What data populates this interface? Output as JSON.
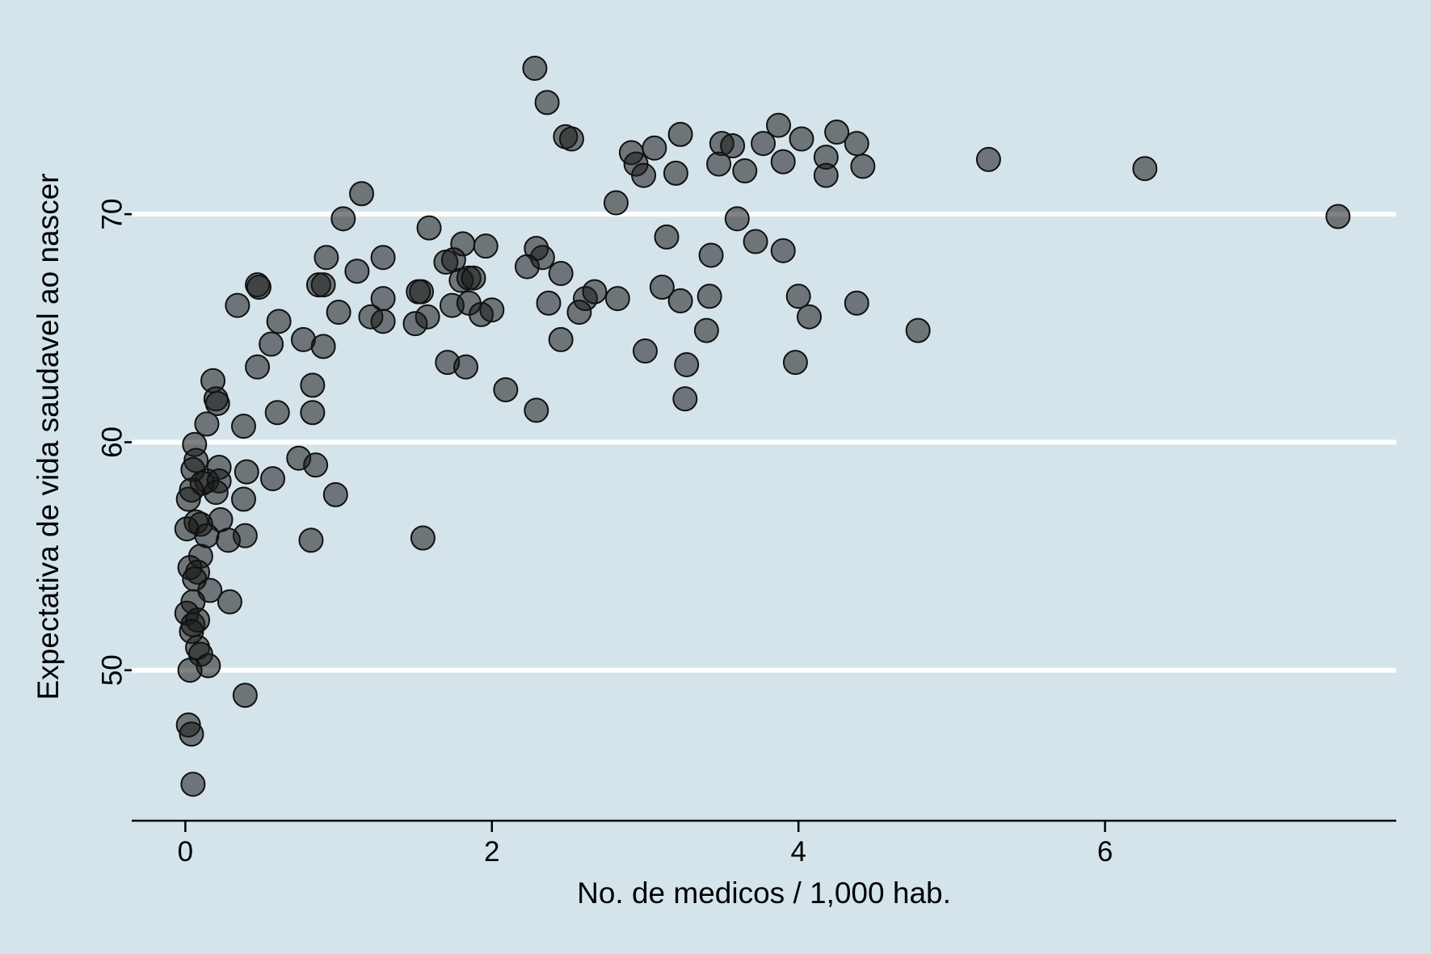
{
  "chart_data": {
    "type": "scatter",
    "title": "",
    "xlabel": "No. de medicos / 1,000 hab.",
    "ylabel": "Expectativa de vida saudavel ao nascer",
    "xlim": [
      -0.35,
      7.9
    ],
    "ylim": [
      43.4,
      77.8
    ],
    "x_ticks": [
      0,
      2,
      4,
      6
    ],
    "y_ticks": [
      50,
      60,
      70
    ],
    "grid": "horizontal",
    "legend": "none",
    "point_color": "#1a1a1a",
    "background_color": "#d5e4eb",
    "points": [
      [
        2.28,
        76.4
      ],
      [
        2.36,
        74.9
      ],
      [
        2.48,
        73.4
      ],
      [
        2.52,
        73.3
      ],
      [
        3.23,
        73.5
      ],
      [
        3.5,
        73.1
      ],
      [
        3.57,
        73.0
      ],
      [
        3.77,
        73.1
      ],
      [
        3.87,
        73.9
      ],
      [
        4.02,
        73.3
      ],
      [
        4.25,
        73.6
      ],
      [
        4.38,
        73.1
      ],
      [
        2.91,
        72.7
      ],
      [
        3.06,
        72.9
      ],
      [
        2.94,
        72.2
      ],
      [
        2.99,
        71.7
      ],
      [
        3.2,
        71.8
      ],
      [
        3.48,
        72.2
      ],
      [
        3.65,
        71.9
      ],
      [
        3.9,
        72.3
      ],
      [
        4.18,
        72.5
      ],
      [
        4.18,
        71.7
      ],
      [
        4.42,
        72.1
      ],
      [
        5.24,
        72.4
      ],
      [
        6.26,
        72.0
      ],
      [
        7.52,
        69.9
      ],
      [
        1.15,
        70.9
      ],
      [
        1.03,
        69.8
      ],
      [
        2.81,
        70.5
      ],
      [
        3.6,
        69.8
      ],
      [
        1.59,
        69.4
      ],
      [
        3.14,
        69.0
      ],
      [
        3.72,
        68.8
      ],
      [
        1.81,
        68.7
      ],
      [
        1.96,
        68.6
      ],
      [
        2.29,
        68.5
      ],
      [
        3.9,
        68.4
      ],
      [
        0.92,
        68.1
      ],
      [
        1.29,
        68.1
      ],
      [
        2.33,
        68.1
      ],
      [
        3.43,
        68.2
      ],
      [
        1.7,
        67.9
      ],
      [
        1.75,
        68.0
      ],
      [
        2.23,
        67.7
      ],
      [
        1.12,
        67.5
      ],
      [
        2.45,
        67.4
      ],
      [
        1.8,
        67.1
      ],
      [
        1.85,
        67.2
      ],
      [
        1.88,
        67.2
      ],
      [
        0.47,
        66.9
      ],
      [
        0.48,
        66.8
      ],
      [
        0.87,
        66.9
      ],
      [
        0.9,
        66.9
      ],
      [
        1.54,
        66.6
      ],
      [
        1.52,
        66.6
      ],
      [
        1.29,
        66.3
      ],
      [
        2.61,
        66.3
      ],
      [
        2.67,
        66.6
      ],
      [
        3.11,
        66.8
      ],
      [
        2.82,
        66.3
      ],
      [
        3.42,
        66.4
      ],
      [
        3.23,
        66.2
      ],
      [
        4.0,
        66.4
      ],
      [
        4.38,
        66.1
      ],
      [
        0.34,
        66.0
      ],
      [
        1.74,
        66.0
      ],
      [
        1.85,
        66.1
      ],
      [
        2.37,
        66.1
      ],
      [
        1.0,
        65.7
      ],
      [
        1.21,
        65.5
      ],
      [
        1.29,
        65.3
      ],
      [
        1.58,
        65.5
      ],
      [
        1.93,
        65.6
      ],
      [
        2.0,
        65.8
      ],
      [
        2.57,
        65.7
      ],
      [
        4.07,
        65.5
      ],
      [
        0.61,
        65.3
      ],
      [
        1.5,
        65.2
      ],
      [
        3.4,
        64.9
      ],
      [
        4.78,
        64.9
      ],
      [
        0.77,
        64.5
      ],
      [
        2.45,
        64.5
      ],
      [
        0.56,
        64.3
      ],
      [
        0.9,
        64.2
      ],
      [
        3.0,
        64.0
      ],
      [
        0.47,
        63.3
      ],
      [
        1.71,
        63.5
      ],
      [
        1.83,
        63.3
      ],
      [
        3.27,
        63.4
      ],
      [
        3.98,
        63.5
      ],
      [
        0.18,
        62.7
      ],
      [
        0.83,
        62.5
      ],
      [
        2.09,
        62.3
      ],
      [
        0.2,
        61.9
      ],
      [
        0.21,
        61.7
      ],
      [
        3.26,
        61.9
      ],
      [
        0.6,
        61.3
      ],
      [
        0.83,
        61.3
      ],
      [
        2.29,
        61.4
      ],
      [
        0.14,
        60.8
      ],
      [
        0.38,
        60.7
      ],
      [
        0.06,
        59.9
      ],
      [
        0.74,
        59.3
      ],
      [
        0.07,
        59.2
      ],
      [
        0.85,
        59.0
      ],
      [
        0.22,
        58.9
      ],
      [
        0.05,
        58.8
      ],
      [
        0.4,
        58.7
      ],
      [
        0.57,
        58.4
      ],
      [
        0.14,
        58.3
      ],
      [
        0.11,
        58.2
      ],
      [
        0.22,
        58.3
      ],
      [
        0.04,
        57.9
      ],
      [
        0.2,
        57.8
      ],
      [
        0.98,
        57.7
      ],
      [
        0.02,
        57.5
      ],
      [
        0.38,
        57.5
      ],
      [
        0.23,
        56.6
      ],
      [
        0.07,
        56.5
      ],
      [
        0.1,
        56.4
      ],
      [
        0.01,
        56.2
      ],
      [
        0.39,
        55.9
      ],
      [
        0.28,
        55.7
      ],
      [
        0.82,
        55.7
      ],
      [
        0.14,
        55.9
      ],
      [
        1.55,
        55.8
      ],
      [
        0.1,
        55.0
      ],
      [
        0.03,
        54.5
      ],
      [
        0.08,
        54.3
      ],
      [
        0.06,
        54.0
      ],
      [
        0.16,
        53.5
      ],
      [
        0.29,
        53.0
      ],
      [
        0.05,
        53.0
      ],
      [
        0.01,
        52.5
      ],
      [
        0.05,
        52.0
      ],
      [
        0.08,
        52.2
      ],
      [
        0.04,
        51.7
      ],
      [
        0.08,
        51.0
      ],
      [
        0.1,
        50.7
      ],
      [
        0.15,
        50.2
      ],
      [
        0.03,
        50.0
      ],
      [
        0.39,
        48.9
      ],
      [
        0.02,
        47.6
      ],
      [
        0.04,
        47.2
      ],
      [
        0.05,
        45.0
      ]
    ]
  }
}
